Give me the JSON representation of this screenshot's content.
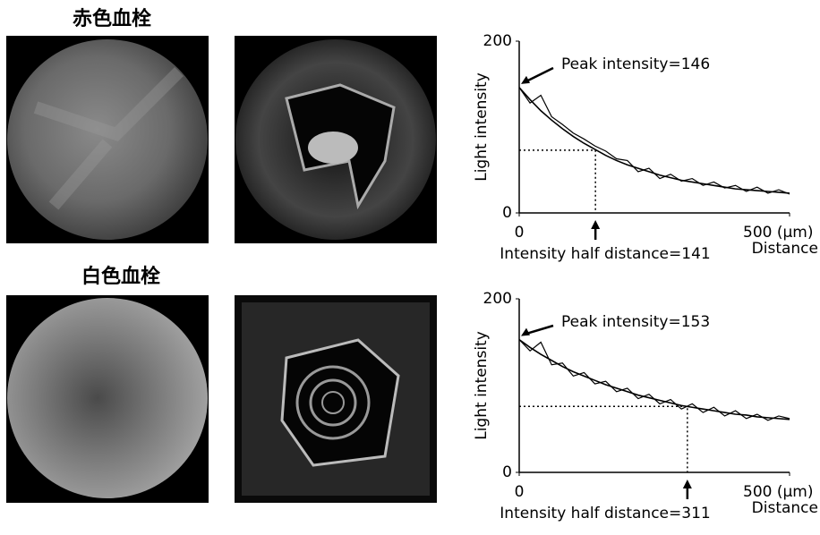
{
  "panels": [
    {
      "label": "赤色血栓"
    },
    {
      "label": "白色血栓"
    }
  ],
  "chart_data": [
    {
      "type": "line",
      "ylabel": "Light intensity",
      "xlabel": "Distance",
      "xlim": [
        0,
        500
      ],
      "ylim": [
        0,
        200
      ],
      "xticks": [
        0,
        {
          "value": 500,
          "label": "500 (μm)"
        }
      ],
      "yticks": [
        0,
        200
      ],
      "x": [
        0,
        20,
        40,
        60,
        80,
        100,
        120,
        140,
        160,
        180,
        200,
        220,
        240,
        260,
        280,
        300,
        320,
        340,
        360,
        380,
        400,
        420,
        440,
        460,
        480,
        500
      ],
      "series": [
        {
          "color": "#000000",
          "values": [
            146,
            128,
            137,
            112,
            103,
            93,
            86,
            78,
            72,
            63,
            61,
            48,
            52,
            40,
            45,
            37,
            40,
            32,
            36,
            29,
            32,
            25,
            30,
            23,
            27,
            22
          ]
        },
        {
          "color": "#000000",
          "values": [
            146,
            132,
            119,
            108,
            98,
            89,
            81,
            74,
            67,
            61,
            56,
            52,
            48,
            44,
            41,
            38,
            36,
            34,
            32,
            30,
            28,
            27,
            26,
            25,
            24,
            23
          ]
        }
      ],
      "annotations": [
        {
          "text": "Peak intensity=146",
          "value": 146
        },
        {
          "text": "Intensity half distance=141",
          "x": 141,
          "y": 73
        }
      ]
    },
    {
      "type": "line",
      "ylabel": "Light intensity",
      "xlabel": "Distance",
      "xlim": [
        0,
        500
      ],
      "ylim": [
        0,
        200
      ],
      "xticks": [
        0,
        {
          "value": 500,
          "label": "500 (μm)"
        }
      ],
      "yticks": [
        0,
        200
      ],
      "x": [
        0,
        20,
        40,
        60,
        80,
        100,
        120,
        140,
        160,
        180,
        200,
        220,
        240,
        260,
        280,
        300,
        320,
        340,
        360,
        380,
        400,
        420,
        440,
        460,
        480,
        500
      ],
      "series": [
        {
          "color": "#000000",
          "values": [
            153,
            140,
            150,
            124,
            126,
            111,
            115,
            102,
            105,
            93,
            97,
            85,
            90,
            79,
            84,
            73,
            79,
            69,
            75,
            65,
            71,
            62,
            67,
            60,
            65,
            62
          ]
        },
        {
          "color": "#000000",
          "values": [
            153,
            144,
            136,
            129,
            122,
            116,
            111,
            106,
            101,
            97,
            93,
            89,
            86,
            83,
            80,
            77,
            75,
            73,
            71,
            69,
            67,
            66,
            64,
            63,
            62,
            61
          ]
        }
      ],
      "annotations": [
        {
          "text": "Peak intensity=153",
          "value": 153
        },
        {
          "text": "Intensity half distance=311",
          "x": 311,
          "y": 76
        }
      ]
    }
  ]
}
